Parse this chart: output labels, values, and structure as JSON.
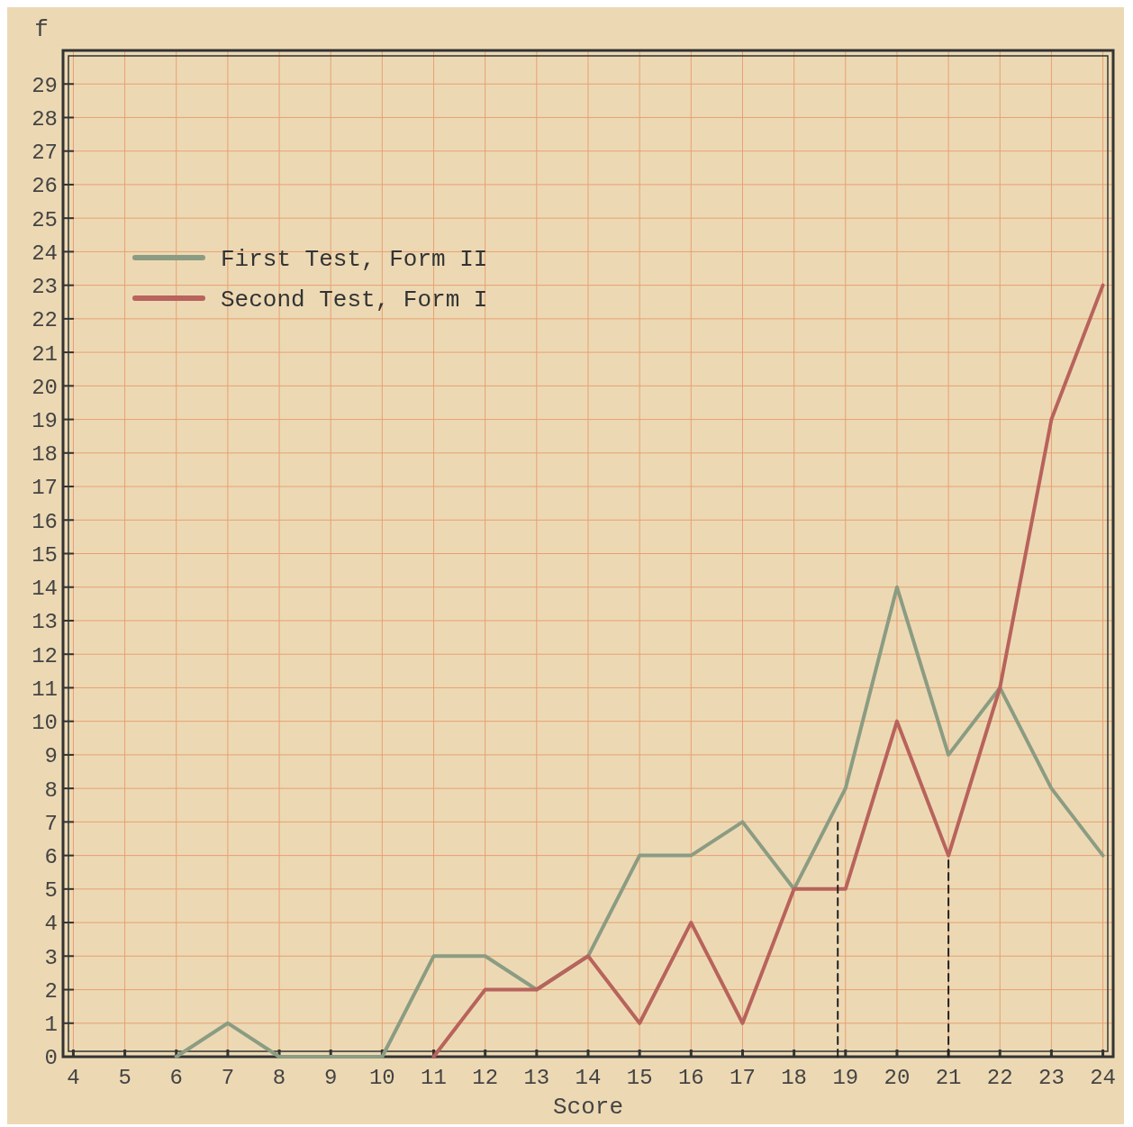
{
  "chart_data": {
    "type": "line",
    "xlabel": "Score",
    "ylabel": "f",
    "xlim": [
      3.8,
      24.2
    ],
    "xticks": [
      4,
      5,
      6,
      7,
      8,
      9,
      10,
      11,
      12,
      13,
      14,
      15,
      16,
      17,
      18,
      19,
      20,
      21,
      22,
      23,
      24
    ],
    "ylim": [
      0,
      30
    ],
    "yticks": [
      0,
      1,
      2,
      3,
      4,
      5,
      6,
      7,
      8,
      9,
      10,
      11,
      12,
      13,
      14,
      15,
      16,
      17,
      18,
      19,
      20,
      21,
      22,
      23,
      24,
      25,
      26,
      27,
      28,
      29
    ],
    "grid": true,
    "legend": "top left",
    "marker": "none",
    "series": [
      {
        "name": "First Test, Form II",
        "color": "#8b9c82",
        "x": [
          6,
          7,
          8,
          9,
          10,
          11,
          12,
          13,
          14,
          15,
          16,
          17,
          18,
          19,
          20,
          21,
          22,
          23,
          24
        ],
        "values": [
          0,
          1,
          0,
          0,
          0,
          3,
          3,
          2,
          3,
          6,
          6,
          7,
          5,
          8,
          14,
          9,
          11,
          8,
          6
        ]
      },
      {
        "name": "Second Test, Form I",
        "color": "#b8635c",
        "x": [
          11,
          12,
          13,
          14,
          15,
          16,
          17,
          18,
          19,
          20,
          21,
          22,
          23,
          24
        ],
        "values": [
          0,
          2,
          2,
          3,
          1,
          4,
          1,
          5,
          5,
          10,
          6,
          11,
          19,
          23
        ]
      },
      {
        "color": "#222222",
        "line_style": "dashed",
        "x": [
          18.85,
          18.85
        ],
        "values": [
          0,
          7
        ]
      },
      {
        "color": "#222222",
        "line_style": "dashed",
        "x": [
          21,
          21
        ],
        "values": [
          0,
          6
        ]
      }
    ]
  }
}
